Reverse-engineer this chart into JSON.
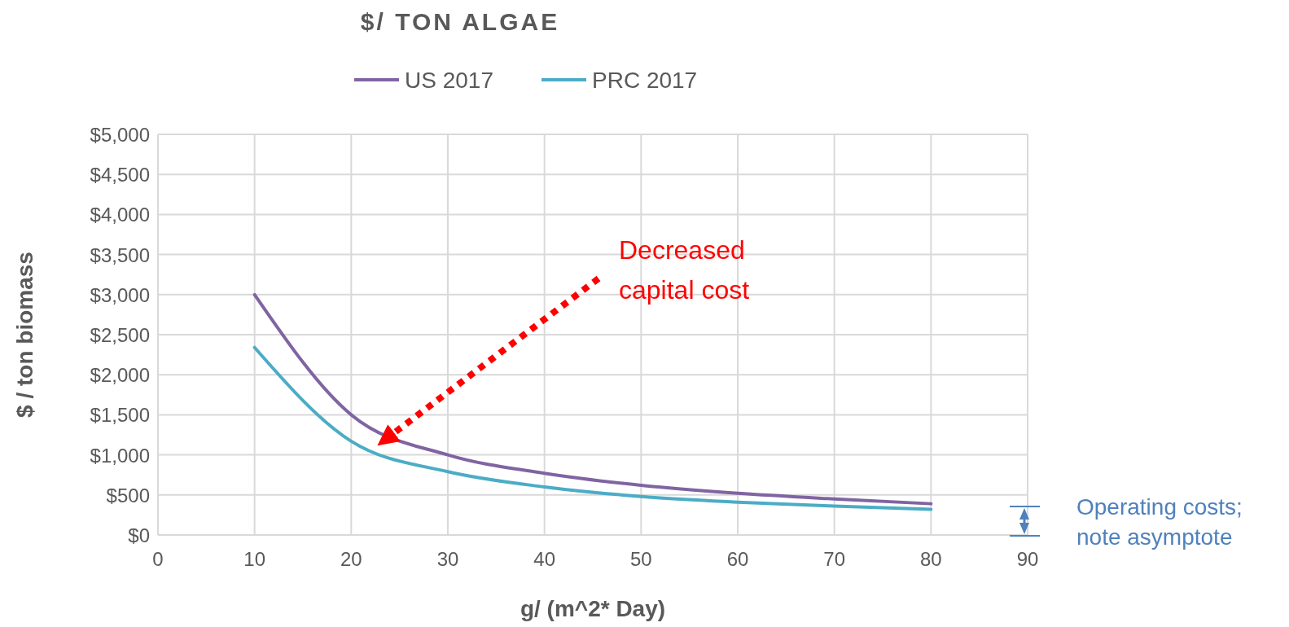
{
  "chart_data": {
    "type": "line",
    "title": "$/ TON ALGAE",
    "xlabel": "g/ (m^2* Day)",
    "ylabel": "$ / ton biomass",
    "x": [
      10,
      20,
      30,
      40,
      50,
      60,
      70,
      80
    ],
    "series": [
      {
        "name": "US 2017",
        "color": "#8064a2",
        "values": [
          3000,
          1500,
          1000,
          770,
          620,
          520,
          450,
          390
        ]
      },
      {
        "name": "PRC 2017",
        "color": "#4bacc6",
        "values": [
          2340,
          1170,
          790,
          600,
          480,
          410,
          360,
          320
        ]
      }
    ],
    "xlim": [
      0,
      90
    ],
    "xticks": [
      0,
      10,
      20,
      30,
      40,
      50,
      60,
      70,
      80,
      90
    ],
    "ylim": [
      0,
      5000
    ],
    "yticks": [
      {
        "value": 0,
        "label": "$0"
      },
      {
        "value": 500,
        "label": "$500"
      },
      {
        "value": 1000,
        "label": "$1,000"
      },
      {
        "value": 1500,
        "label": "$1,500"
      },
      {
        "value": 2000,
        "label": "$2,000"
      },
      {
        "value": 2500,
        "label": "$2,500"
      },
      {
        "value": 3000,
        "label": "$3,000"
      },
      {
        "value": 3500,
        "label": "$3,500"
      },
      {
        "value": 4000,
        "label": "$4,000"
      },
      {
        "value": 4500,
        "label": "$4,500"
      },
      {
        "value": 5000,
        "label": "$5,000"
      }
    ],
    "grid": true,
    "legend": "top",
    "marker": "none",
    "line_style": "solid",
    "annotations": [
      "Decreased capital cost",
      "Operating costs; note asymptote"
    ]
  }
}
